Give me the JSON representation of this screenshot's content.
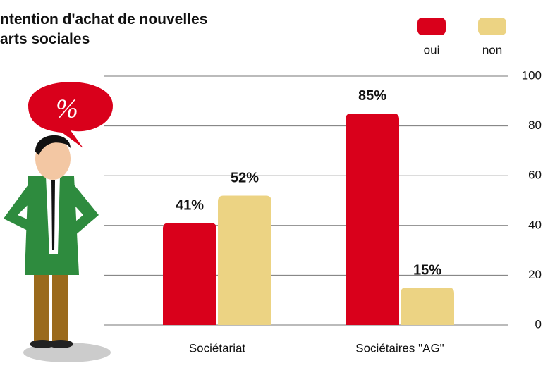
{
  "chart_data": {
    "type": "bar",
    "title": [
      "ntention d'achat de nouvelles",
      "arts sociales"
    ],
    "annotation": "%",
    "categories": [
      "Sociétariat",
      "Sociétaires \"AG\""
    ],
    "series": [
      {
        "name": "oui",
        "color": "#d9001b",
        "values": [
          41,
          85
        ],
        "value_labels": [
          "41%",
          "85%"
        ]
      },
      {
        "name": "non",
        "color": "#ecd383",
        "values": [
          52,
          15
        ],
        "value_labels": [
          "52%",
          "15%"
        ]
      }
    ],
    "ylim": [
      0,
      100
    ],
    "yticks": [
      0,
      20,
      40,
      60,
      80,
      100
    ],
    "grid": true
  }
}
